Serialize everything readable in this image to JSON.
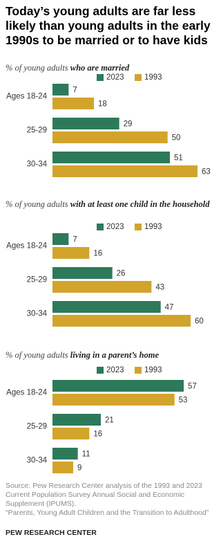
{
  "title": "Today’s young adults are far less likely than young adults in the early 1990s to be married or to have kids",
  "chart_data": [
    {
      "type": "bar",
      "orientation": "horizontal",
      "subtitle": "% of young adults",
      "subtitle_emphasis": "who are married",
      "categories": [
        "Ages 18-24",
        "25-29",
        "30-34"
      ],
      "series": [
        {
          "name": "2023",
          "color": "#2d7a5a",
          "values": [
            7,
            29,
            51
          ]
        },
        {
          "name": "1993",
          "color": "#d2a42b",
          "values": [
            18,
            50,
            63
          ]
        }
      ]
    },
    {
      "type": "bar",
      "orientation": "horizontal",
      "subtitle": "% of young adults",
      "subtitle_emphasis": "with at least one child in the household",
      "categories": [
        "Ages 18-24",
        "25-29",
        "30-34"
      ],
      "series": [
        {
          "name": "2023",
          "color": "#2d7a5a",
          "values": [
            7,
            26,
            47
          ]
        },
        {
          "name": "1993",
          "color": "#d2a42b",
          "values": [
            16,
            43,
            60
          ]
        }
      ]
    },
    {
      "type": "bar",
      "orientation": "horizontal",
      "subtitle": "% of young adults",
      "subtitle_emphasis": "living in a parent’s home",
      "categories": [
        "Ages 18-24",
        "25-29",
        "30-34"
      ],
      "series": [
        {
          "name": "2023",
          "color": "#2d7a5a",
          "values": [
            57,
            21,
            11
          ]
        },
        {
          "name": "1993",
          "color": "#d2a42b",
          "values": [
            53,
            16,
            9
          ]
        }
      ]
    }
  ],
  "source": [
    "Source: Pew Research Center analysis of the 1993 and 2023 Current Population Survey Annual Social and Economic Supplement (IPUMS).",
    "“Parents, Young Adult Children and the Transition to Adulthood”"
  ],
  "brand": "PEW RESEARCH CENTER"
}
